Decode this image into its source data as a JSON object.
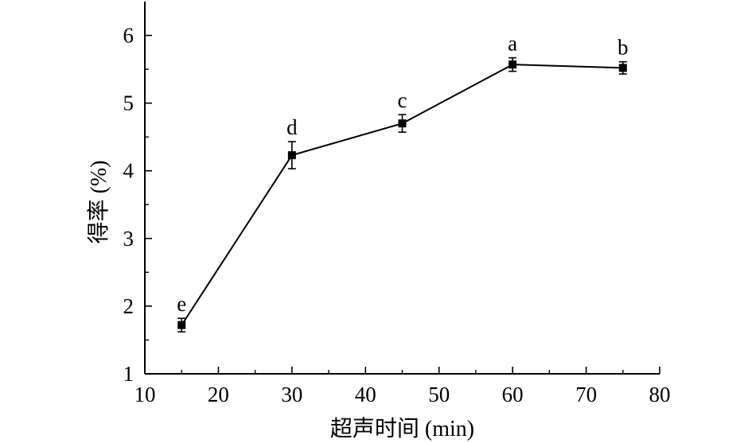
{
  "chart_data": {
    "type": "line",
    "title": "",
    "xlabel": "超声时间 (min)",
    "ylabel": "得率 (%)",
    "xlim": [
      10,
      80
    ],
    "ylim": [
      1,
      6.5
    ],
    "xticks": [
      10,
      20,
      30,
      40,
      50,
      60,
      70,
      80
    ],
    "yticks": [
      1,
      2,
      3,
      4,
      5,
      6
    ],
    "grid": false,
    "legend": "none",
    "series": [
      {
        "x": [
          15,
          30,
          45,
          60,
          75
        ],
        "values": [
          1.72,
          4.23,
          4.7,
          5.57,
          5.52
        ],
        "errors": [
          0.1,
          0.2,
          0.13,
          0.1,
          0.09
        ],
        "labels": [
          "e",
          "d",
          "c",
          "a",
          "b"
        ],
        "marker": "square",
        "color": "#000000"
      }
    ]
  }
}
